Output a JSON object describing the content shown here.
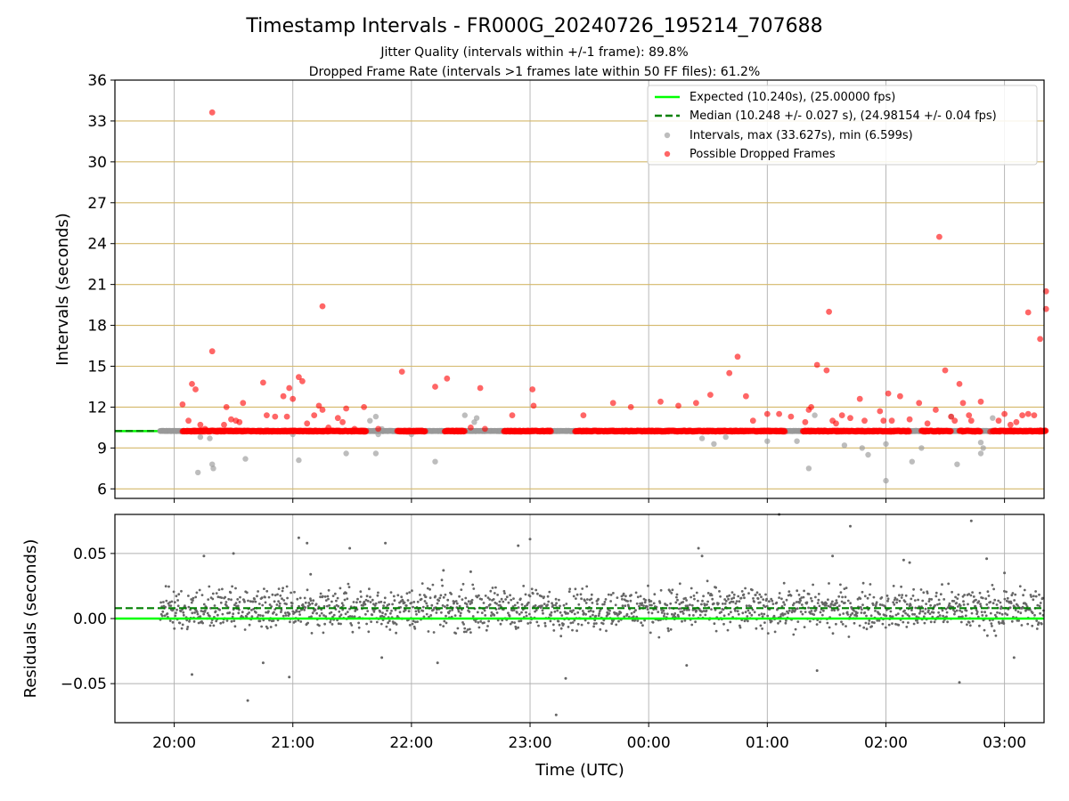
{
  "figure": {
    "title": "Timestamp Intervals - FR000G_20240726_195214_707688",
    "subtitle1": "Jitter Quality (intervals within +/-1 frame): 89.8%",
    "subtitle2": "Dropped Frame Rate (intervals >1 frames late within 50 FF files): 61.2%"
  },
  "colors": {
    "expected": "#00ff00",
    "median": "#008000",
    "intervals": "#999999",
    "dropped": "#ff0000",
    "ygrid": "#d4b86a",
    "xgrid": "#b0b0b0",
    "residual": "#666666"
  },
  "chart_data": [
    {
      "type": "scatter",
      "ylabel": "Intervals (seconds)",
      "ylim": [
        5.3,
        36
      ],
      "yticks": [
        "6",
        "9",
        "12",
        "15",
        "18",
        "21",
        "24",
        "27",
        "30",
        "33",
        "36"
      ],
      "grid": true,
      "legend_position": "top-right",
      "legend": {
        "expected": "Expected (10.240s), (25.00000 fps)",
        "median": "Median (10.248 +/- 0.027 s), (24.98154 +/- 0.04 fps)",
        "intervals": "Intervals, max (33.627s), min (6.599s)",
        "dropped": "Possible Dropped Frames"
      },
      "expected_value": 10.24,
      "median_value": 10.248,
      "series": [
        {
          "name": "Intervals, max (33.627s), min (6.599s)",
          "x": [
            19.88,
            19.92,
            19.97,
            20.02,
            20.07,
            20.12,
            20.15,
            20.18,
            20.22,
            20.26,
            20.3,
            20.34,
            20.38,
            20.43,
            20.48,
            20.52,
            20.56,
            20.61,
            20.66,
            20.7,
            20.75,
            20.8,
            20.85,
            20.9,
            20.95,
            21.0,
            21.05,
            21.1,
            21.15,
            21.2,
            21.25,
            21.3,
            21.35,
            21.4,
            21.45,
            21.5,
            21.55,
            21.6,
            21.65,
            21.7,
            21.72,
            21.75,
            21.8,
            21.85,
            21.9,
            21.95,
            22.0,
            22.05,
            22.1,
            22.15,
            22.2,
            22.25,
            22.27,
            22.3,
            22.35,
            22.4,
            22.45,
            22.5,
            22.53,
            22.55,
            22.6,
            22.62,
            22.65,
            22.7,
            22.75,
            22.8,
            22.85,
            22.9,
            22.95,
            23.0,
            23.05,
            23.1,
            23.15,
            23.2,
            23.25,
            23.3,
            23.35,
            23.4,
            23.45,
            23.5,
            23.55,
            23.6,
            23.65,
            23.7,
            23.75,
            23.8,
            23.85,
            23.9,
            23.95,
            24.0,
            24.05,
            24.1,
            24.15,
            24.2,
            24.25,
            24.3,
            24.35,
            24.4,
            24.45,
            24.5,
            24.55,
            24.6,
            24.65,
            24.7,
            24.75,
            24.8,
            24.85,
            24.9,
            24.95,
            25.0,
            25.05,
            25.1,
            25.15,
            25.2,
            25.25,
            25.3,
            25.35,
            25.4,
            25.45,
            25.5,
            25.55,
            25.6,
            25.65,
            25.7,
            25.75,
            25.8,
            25.85,
            25.9,
            25.95,
            26.0,
            26.05,
            26.1,
            26.15,
            26.2,
            26.25,
            26.3,
            26.35,
            26.4,
            26.45,
            26.5,
            26.55,
            26.6,
            26.65,
            26.7,
            26.75,
            26.8,
            26.82,
            26.85,
            26.9,
            26.95,
            27.0,
            27.05,
            27.1,
            27.15,
            27.2,
            27.25,
            27.3,
            20.2,
            20.32,
            20.33,
            20.6,
            21.05,
            21.7,
            22.2,
            25.35,
            25.85,
            26.0,
            26.22,
            26.6,
            26.8,
            21.45
          ],
          "y": [
            10.25,
            10.24,
            10.26,
            10.25,
            10.24,
            10.25,
            10.24,
            10.26,
            9.8,
            10.25,
            9.7,
            10.24,
            10.25,
            10.26,
            10.24,
            10.25,
            10.24,
            10.26,
            10.25,
            10.24,
            10.25,
            10.24,
            10.26,
            10.25,
            10.24,
            10.0,
            10.25,
            10.24,
            10.26,
            10.25,
            10.24,
            10.25,
            10.24,
            10.26,
            10.25,
            10.24,
            10.25,
            10.24,
            11.0,
            11.3,
            10.0,
            10.4,
            10.24,
            10.25,
            10.26,
            10.24,
            10.0,
            10.25,
            10.24,
            10.26,
            10.25,
            10.24,
            10.25,
            10.24,
            10.26,
            10.25,
            11.4,
            10.24,
            10.9,
            11.2,
            10.25,
            10.24,
            10.26,
            10.25,
            10.24,
            10.25,
            10.24,
            10.26,
            10.25,
            10.24,
            10.25,
            10.24,
            10.26,
            10.25,
            10.24,
            10.25,
            10.24,
            10.26,
            10.25,
            10.24,
            10.25,
            10.24,
            10.26,
            10.25,
            10.24,
            10.25,
            10.24,
            10.26,
            10.25,
            10.24,
            10.25,
            10.24,
            10.26,
            10.25,
            10.24,
            10.25,
            10.24,
            10.26,
            9.7,
            10.25,
            9.3,
            10.24,
            9.8,
            10.25,
            10.26,
            10.24,
            10.25,
            10.24,
            10.26,
            9.5,
            10.25,
            10.24,
            10.26,
            10.25,
            9.5,
            10.24,
            10.25,
            11.4,
            10.24,
            10.26,
            10.25,
            10.24,
            9.2,
            10.25,
            10.24,
            9.0,
            10.26,
            10.25,
            10.24,
            9.3,
            10.25,
            10.24,
            10.26,
            10.25,
            10.24,
            9.0,
            10.25,
            10.24,
            10.26,
            10.25,
            11.3,
            10.24,
            10.25,
            10.26,
            10.24,
            9.4,
            9.0,
            10.25,
            11.2,
            10.24,
            10.26,
            10.25,
            10.24,
            10.25,
            10.24,
            10.26,
            10.25,
            7.2,
            7.8,
            7.5,
            8.2,
            8.1,
            8.6,
            8.0,
            7.5,
            8.5,
            6.6,
            8.0,
            7.8,
            8.6,
            8.6
          ],
          "color": "#999999"
        },
        {
          "name": "Possible Dropped Frames",
          "x": [
            20.07,
            20.12,
            20.15,
            20.18,
            20.22,
            20.26,
            20.32,
            20.42,
            20.44,
            20.48,
            20.52,
            20.55,
            20.58,
            20.75,
            20.78,
            20.85,
            20.92,
            20.95,
            20.97,
            21.0,
            21.05,
            21.08,
            21.12,
            21.18,
            21.22,
            21.25,
            21.3,
            21.38,
            21.42,
            21.45,
            21.52,
            21.6,
            21.72,
            21.92,
            22.2,
            22.3,
            22.5,
            22.58,
            22.62,
            22.85,
            23.02,
            23.03,
            23.45,
            23.7,
            23.85,
            24.1,
            24.25,
            24.4,
            24.52,
            24.68,
            24.75,
            24.82,
            24.88,
            25.0,
            25.1,
            25.2,
            25.32,
            25.35,
            25.37,
            25.42,
            25.5,
            25.55,
            25.58,
            25.63,
            25.7,
            25.78,
            25.82,
            25.95,
            25.98,
            26.02,
            26.05,
            26.12,
            26.2,
            26.28,
            26.35,
            26.42,
            26.45,
            26.5,
            26.55,
            26.58,
            26.62,
            26.65,
            26.7,
            26.72,
            26.75,
            26.8,
            26.88,
            26.95,
            27.0,
            27.05,
            27.1,
            27.15,
            27.2,
            27.25,
            27.3,
            27.35,
            20.32,
            21.25,
            25.52,
            26.45,
            27.2,
            27.3,
            27.35
          ],
          "y": [
            12.2,
            11.0,
            13.7,
            13.3,
            10.7,
            10.4,
            16.1,
            10.7,
            12.0,
            11.1,
            11.0,
            10.9,
            12.3,
            13.8,
            11.4,
            11.3,
            12.8,
            11.3,
            13.4,
            12.6,
            14.2,
            13.9,
            10.8,
            11.4,
            12.1,
            11.8,
            10.5,
            11.2,
            10.9,
            11.9,
            10.4,
            12.0,
            10.4,
            14.6,
            13.5,
            14.1,
            10.5,
            13.4,
            10.4,
            11.4,
            13.3,
            12.1,
            11.4,
            12.3,
            12.0,
            12.4,
            12.1,
            12.3,
            12.9,
            14.5,
            15.7,
            12.8,
            11.0,
            11.5,
            11.5,
            11.3,
            10.9,
            11.8,
            12.0,
            15.1,
            14.7,
            11.0,
            10.8,
            11.4,
            11.2,
            12.6,
            11.0,
            11.7,
            11.0,
            13.0,
            11.0,
            12.8,
            11.1,
            12.3,
            10.8,
            11.8,
            10.2,
            14.7,
            11.3,
            11.0,
            13.7,
            12.3,
            11.4,
            11.0,
            10.2,
            12.4,
            10.2,
            11.0,
            11.5,
            10.7,
            10.9,
            11.4,
            11.5,
            11.4,
            10.3,
            20.5,
            33.627,
            19.4,
            19.0,
            24.5,
            18.95,
            17.0,
            19.2
          ],
          "color": "#ff0000"
        }
      ]
    },
    {
      "type": "scatter",
      "xlabel": "Time (UTC)",
      "ylabel": "Residuals (seconds)",
      "xlim": [
        "19:30",
        "03:20"
      ],
      "ylim": [
        -0.08,
        0.08
      ],
      "xticks": [
        "20:00",
        "21:00",
        "22:00",
        "23:00",
        "00:00",
        "01:00",
        "02:00",
        "03:00"
      ],
      "yticks": [
        "−0.05",
        "0.00",
        "0.05"
      ],
      "grid": true,
      "expected_value": 0.0,
      "median_value": 0.008,
      "series": [
        {
          "name": "residuals",
          "x_range": [
            "19:53",
            "03:20"
          ],
          "typical_range": [
            -0.01,
            0.025
          ],
          "outliers_x": [
            20.15,
            20.62,
            20.75,
            20.97,
            21.05,
            21.12,
            21.15,
            21.75,
            21.78,
            22.22,
            22.27,
            22.5,
            22.9,
            23.0,
            23.22,
            23.3,
            24.32,
            24.45,
            25.42,
            25.1,
            25.7,
            25.55,
            26.15,
            26.2,
            26.62,
            26.72,
            26.85,
            27.0,
            27.08,
            20.5,
            20.25,
            21.48,
            24.42
          ],
          "outliers_y": [
            -0.043,
            -0.063,
            -0.034,
            -0.045,
            0.062,
            0.058,
            0.034,
            -0.03,
            0.058,
            -0.034,
            0.037,
            0.036,
            0.056,
            0.061,
            -0.074,
            -0.046,
            -0.036,
            0.048,
            -0.04,
            0.08,
            0.071,
            0.048,
            0.045,
            0.043,
            -0.049,
            0.075,
            0.046,
            0.035,
            -0.03,
            0.05,
            0.048,
            0.054,
            0.054
          ],
          "color": "#666666"
        }
      ]
    }
  ]
}
